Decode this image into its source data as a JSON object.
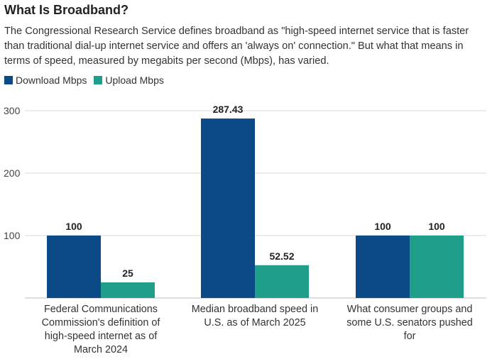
{
  "chart_data": {
    "type": "bar",
    "title": "What Is Broadband?",
    "subtitle": "The Congressional Research Service defines broadband as \"high-speed internet service that is faster than traditional dial-up internet service and offers an 'always on' connection.\" But what that means in terms of speed, measured by megabits per second (Mbps), has varied.",
    "categories": [
      [
        "Federal Communications",
        "Commission's definition of",
        "high-speed internet as of",
        "March 2024"
      ],
      [
        "Median broadband speed in",
        "U.S. as of March 2025"
      ],
      [
        "What consumer groups and",
        "some U.S. senators pushed",
        "for"
      ]
    ],
    "series": [
      {
        "name": "Download Mbps",
        "color": "#0b4a87",
        "values": [
          100,
          287.43,
          100
        ],
        "labels": [
          "100",
          "287.43",
          "100"
        ]
      },
      {
        "name": "Upload Mbps",
        "color": "#1f9e8c",
        "values": [
          25,
          52.52,
          100
        ],
        "labels": [
          "25",
          "52.52",
          "100"
        ]
      }
    ],
    "yticks": [
      "300",
      "200",
      "100"
    ],
    "ylim": [
      0,
      300
    ],
    "grid": true,
    "legend": "top-left"
  }
}
